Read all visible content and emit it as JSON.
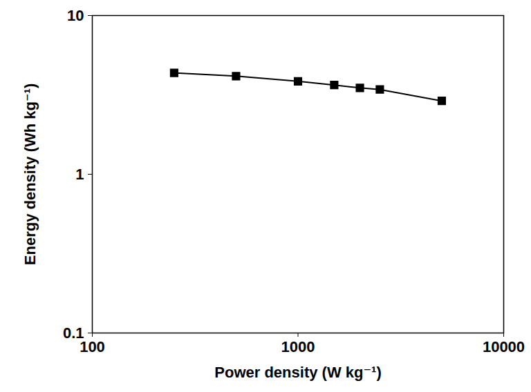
{
  "chart_data": {
    "type": "line",
    "x_label": "Power density (W kg⁻¹)",
    "y_label": "Energy density (Wh kg⁻¹)",
    "log": true,
    "grid": false,
    "xlim": [
      100,
      10000
    ],
    "xticks": [
      100,
      1000,
      10000
    ],
    "ylim": [
      0.1,
      10
    ],
    "yticks": [
      0.1,
      1,
      10
    ],
    "x": [
      250,
      500,
      1000,
      1500,
      2000,
      2500,
      5000
    ],
    "values": [
      4.35,
      4.15,
      3.85,
      3.65,
      3.5,
      3.42,
      2.9
    ],
    "color": "#000000",
    "marker": "square",
    "line_style": "solid"
  }
}
